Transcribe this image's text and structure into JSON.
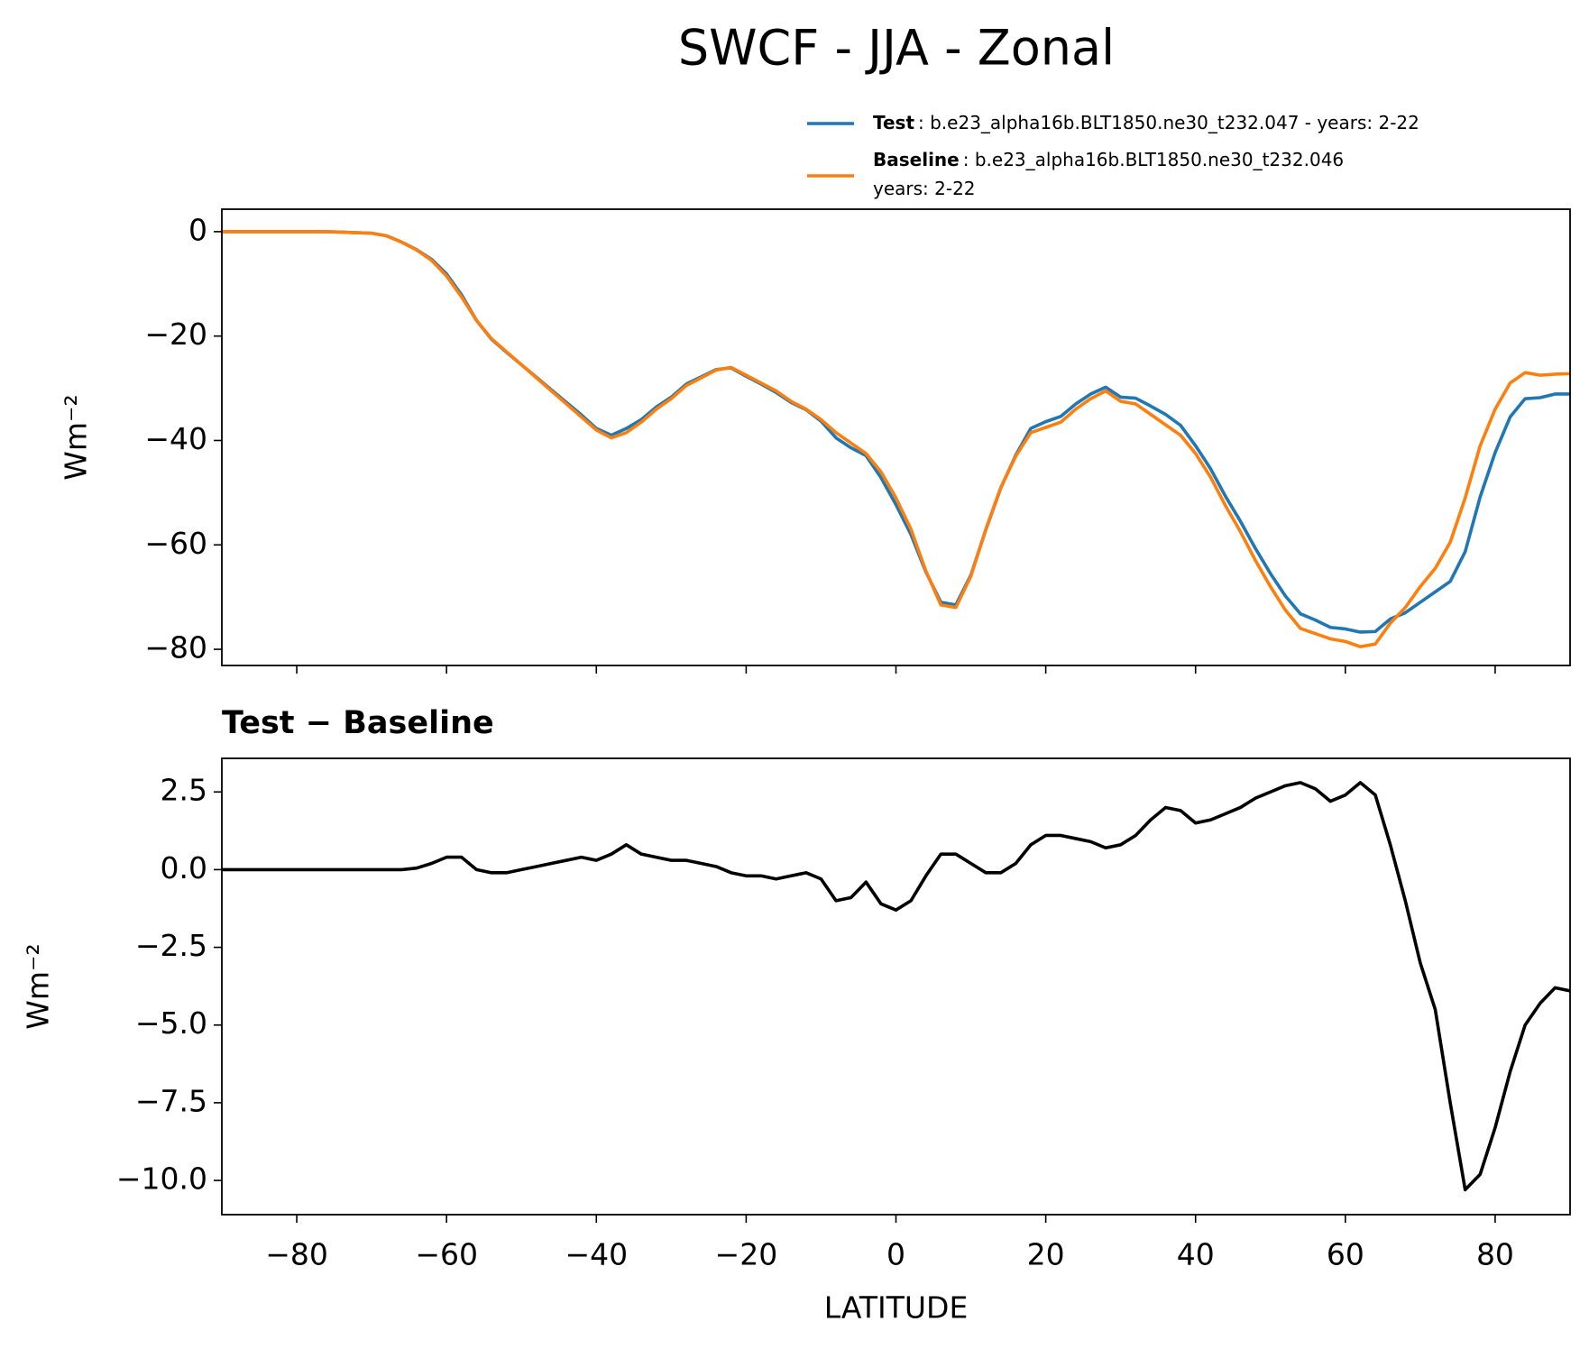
{
  "chart_data": [
    {
      "type": "line",
      "title": "SWCF - JJA - Zonal",
      "ylabel": "Wm⁻²",
      "xlim": [
        -90,
        90
      ],
      "xticks": [
        -80,
        -60,
        -40,
        -20,
        0,
        20,
        40,
        60,
        80
      ],
      "ylim": [
        -83.1,
        4.3
      ],
      "yticks": [
        {
          "value": 0,
          "label": "0"
        },
        {
          "value": -20,
          "label": "−20"
        },
        {
          "value": -40,
          "label": "−40"
        },
        {
          "value": -60,
          "label": "−60"
        },
        {
          "value": -80,
          "label": "−80"
        }
      ],
      "x": [
        -90,
        -88,
        -86,
        -84,
        -82,
        -80,
        -78,
        -76,
        -74,
        -72,
        -70,
        -68,
        -66,
        -64,
        -62,
        -60,
        -58,
        -56,
        -54,
        -52,
        -50,
        -48,
        -46,
        -44,
        -42,
        -40,
        -38,
        -36,
        -34,
        -32,
        -30,
        -28,
        -26,
        -24,
        -22,
        -20,
        -18,
        -16,
        -14,
        -12,
        -10,
        -8,
        -6,
        -4,
        -2,
        0,
        2,
        4,
        6,
        8,
        10,
        12,
        14,
        16,
        18,
        20,
        22,
        24,
        26,
        28,
        30,
        32,
        34,
        36,
        38,
        40,
        42,
        44,
        46,
        48,
        50,
        52,
        54,
        56,
        58,
        60,
        62,
        64,
        66,
        68,
        70,
        72,
        74,
        76,
        78,
        80,
        82,
        84,
        86,
        88,
        90
      ],
      "series": [
        {
          "name": "Test",
          "legend_detail": [
            ": b.e23_alpha16b.BLT1850.ne30_t232.047 - years: 2-22"
          ],
          "color": "#1f77b4",
          "values": [
            0,
            0,
            0,
            0,
            0,
            0,
            0,
            0,
            -0.1,
            -0.2,
            -0.3,
            -0.8,
            -2,
            -3.45,
            -5.3,
            -8.1,
            -12.1,
            -17,
            -20.6,
            -23.1,
            -25.5,
            -27.9,
            -30.3,
            -32.7,
            -35.1,
            -37.7,
            -39,
            -37.7,
            -36,
            -33.6,
            -31.7,
            -29.2,
            -27.8,
            -26.4,
            -26.1,
            -27.7,
            -29.2,
            -30.8,
            -32.7,
            -34.1,
            -36.3,
            -39.5,
            -41.4,
            -42.9,
            -47.1,
            -52.3,
            -58,
            -65.2,
            -71,
            -71.5,
            -65.8,
            -57.1,
            -49.1,
            -42.8,
            -37.7,
            -36.4,
            -35.4,
            -33,
            -31.1,
            -29.8,
            -31.7,
            -31.9,
            -33.4,
            -35,
            -37.1,
            -41,
            -45.4,
            -50.7,
            -55.5,
            -60.7,
            -65.5,
            -69.8,
            -73.2,
            -74.4,
            -75.8,
            -76.1,
            -76.7,
            -76.6,
            -74.2,
            -73,
            -71,
            -69,
            -67,
            -61.3,
            -50.8,
            -42.3,
            -35.5,
            -32,
            -31.8,
            -31.1,
            -31.1
          ]
        },
        {
          "name": "Baseline",
          "legend_detail": [
            ": b.e23_alpha16b.BLT1850.ne30_t232.046",
            "years: 2-22"
          ],
          "color": "#ff7f0e",
          "values": [
            0,
            0,
            0,
            0,
            0,
            0,
            0,
            0,
            -0.1,
            -0.2,
            -0.3,
            -0.8,
            -2,
            -3.5,
            -5.5,
            -8.5,
            -12.5,
            -17,
            -20.5,
            -23,
            -25.5,
            -28,
            -30.5,
            -33,
            -35.5,
            -38,
            -39.5,
            -38.5,
            -36.5,
            -34,
            -32,
            -29.5,
            -28,
            -26.5,
            -26,
            -27.5,
            -29,
            -30.5,
            -32.5,
            -34,
            -36,
            -38.5,
            -40.5,
            -42.5,
            -46,
            -51,
            -57,
            -65,
            -71.5,
            -72,
            -66,
            -57,
            -49,
            -43,
            -38.5,
            -37.5,
            -36.5,
            -34,
            -32,
            -30.5,
            -32.5,
            -33,
            -35,
            -37,
            -39,
            -42.5,
            -47,
            -52.5,
            -57.5,
            -63,
            -68,
            -72.5,
            -76,
            -77,
            -78,
            -78.5,
            -79.5,
            -79,
            -75,
            -72,
            -68,
            -64.5,
            -59.5,
            -51,
            -41,
            -34,
            -29,
            -27,
            -27.5,
            -27.3,
            -27.2
          ]
        }
      ]
    },
    {
      "type": "line",
      "title": "Test − Baseline",
      "ylabel": "Wm⁻²",
      "xlabel": "LATITUDE",
      "xlim": [
        -90,
        90
      ],
      "xticks": [
        {
          "value": -80,
          "label": "−80"
        },
        {
          "value": -60,
          "label": "−60"
        },
        {
          "value": -40,
          "label": "−40"
        },
        {
          "value": -20,
          "label": "−20"
        },
        0,
        20,
        40,
        60,
        80
      ],
      "ylim": [
        -11.1,
        3.58
      ],
      "yticks": [
        {
          "value": 2.5,
          "label": "2.5"
        },
        {
          "value": 0,
          "label": "0.0"
        },
        {
          "value": -2.5,
          "label": "−2.5"
        },
        {
          "value": -5,
          "label": "−5.0"
        },
        {
          "value": -7.5,
          "label": "−7.5"
        },
        {
          "value": -10,
          "label": "−10.0"
        }
      ],
      "x": [
        -90,
        -88,
        -86,
        -84,
        -82,
        -80,
        -78,
        -76,
        -74,
        -72,
        -70,
        -68,
        -66,
        -64,
        -62,
        -60,
        -58,
        -56,
        -54,
        -52,
        -50,
        -48,
        -46,
        -44,
        -42,
        -40,
        -38,
        -36,
        -34,
        -32,
        -30,
        -28,
        -26,
        -24,
        -22,
        -20,
        -18,
        -16,
        -14,
        -12,
        -10,
        -8,
        -6,
        -4,
        -2,
        0,
        2,
        4,
        6,
        8,
        10,
        12,
        14,
        16,
        18,
        20,
        22,
        24,
        26,
        28,
        30,
        32,
        34,
        36,
        38,
        40,
        42,
        44,
        46,
        48,
        50,
        52,
        54,
        56,
        58,
        60,
        62,
        64,
        66,
        68,
        70,
        72,
        74,
        76,
        78,
        80,
        82,
        84,
        86,
        88,
        90
      ],
      "series": [
        {
          "color": "#000000",
          "values": [
            0,
            0,
            0,
            0,
            0,
            0,
            0,
            0,
            0,
            0,
            0,
            0,
            0,
            0.05,
            0.2,
            0.4,
            0.4,
            0,
            -0.1,
            -0.1,
            0,
            0.1,
            0.2,
            0.3,
            0.4,
            0.3,
            0.5,
            0.8,
            0.5,
            0.4,
            0.3,
            0.3,
            0.2,
            0.1,
            -0.1,
            -0.2,
            -0.2,
            -0.3,
            -0.2,
            -0.1,
            -0.3,
            -1.0,
            -0.9,
            -0.4,
            -1.1,
            -1.3,
            -1.0,
            -0.2,
            0.5,
            0.5,
            0.2,
            -0.1,
            -0.1,
            0.2,
            0.8,
            1.1,
            1.1,
            1.0,
            0.9,
            0.7,
            0.8,
            1.1,
            1.6,
            2.0,
            1.9,
            1.5,
            1.6,
            1.8,
            2.0,
            2.3,
            2.5,
            2.7,
            2.8,
            2.6,
            2.2,
            2.4,
            2.8,
            2.4,
            0.8,
            -1.0,
            -3.0,
            -4.5,
            -7.5,
            -10.3,
            -9.8,
            -8.3,
            -6.5,
            -5.0,
            -4.3,
            -3.8,
            -3.9
          ]
        }
      ]
    }
  ]
}
